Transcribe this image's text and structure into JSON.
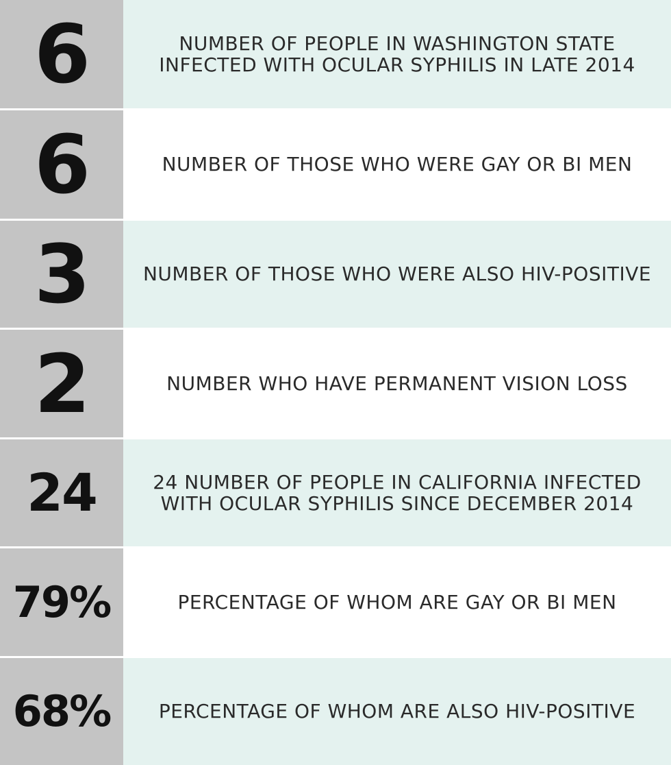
{
  "stats": [
    {
      "number": "6",
      "lines": [
        "NUMBER OF PEOPLE IN WASHINGTON STATE",
        "INFECTED WITH OCULAR SYPHILIS IN LATE 2014"
      ],
      "shade": "tint"
    },
    {
      "number": "6",
      "lines": [
        "NUMBER OF THOSE WHO WERE GAY OR BI MEN"
      ],
      "shade": "plain"
    },
    {
      "number": "3",
      "lines": [
        "NUMBER OF THOSE WHO WERE ALSO HIV-POSITIVE"
      ],
      "shade": "tint"
    },
    {
      "number": "2",
      "lines": [
        "NUMBER WHO HAVE PERMANENT VISION LOSS"
      ],
      "shade": "plain"
    },
    {
      "number": "24",
      "lines": [
        "24 NUMBER OF PEOPLE IN CALIFORNIA INFECTED",
        "WITH OCULAR SYPHILIS SINCE DECEMBER 2014"
      ],
      "shade": "tint"
    },
    {
      "number": "79%",
      "lines": [
        "PERCENTAGE OF WHOM ARE GAY OR BI MEN"
      ],
      "shade": "plain"
    },
    {
      "number": "68%",
      "lines": [
        "PERCENTAGE OF WHOM ARE ALSO HIV-POSITIVE"
      ],
      "shade": "tint"
    }
  ],
  "colors": {
    "number_panel": "#c4c4c4",
    "tint_row": "#e4f2ef",
    "plain_row": "#ffffff",
    "number_text": "#111111",
    "description_text": "#2a2a2a"
  }
}
